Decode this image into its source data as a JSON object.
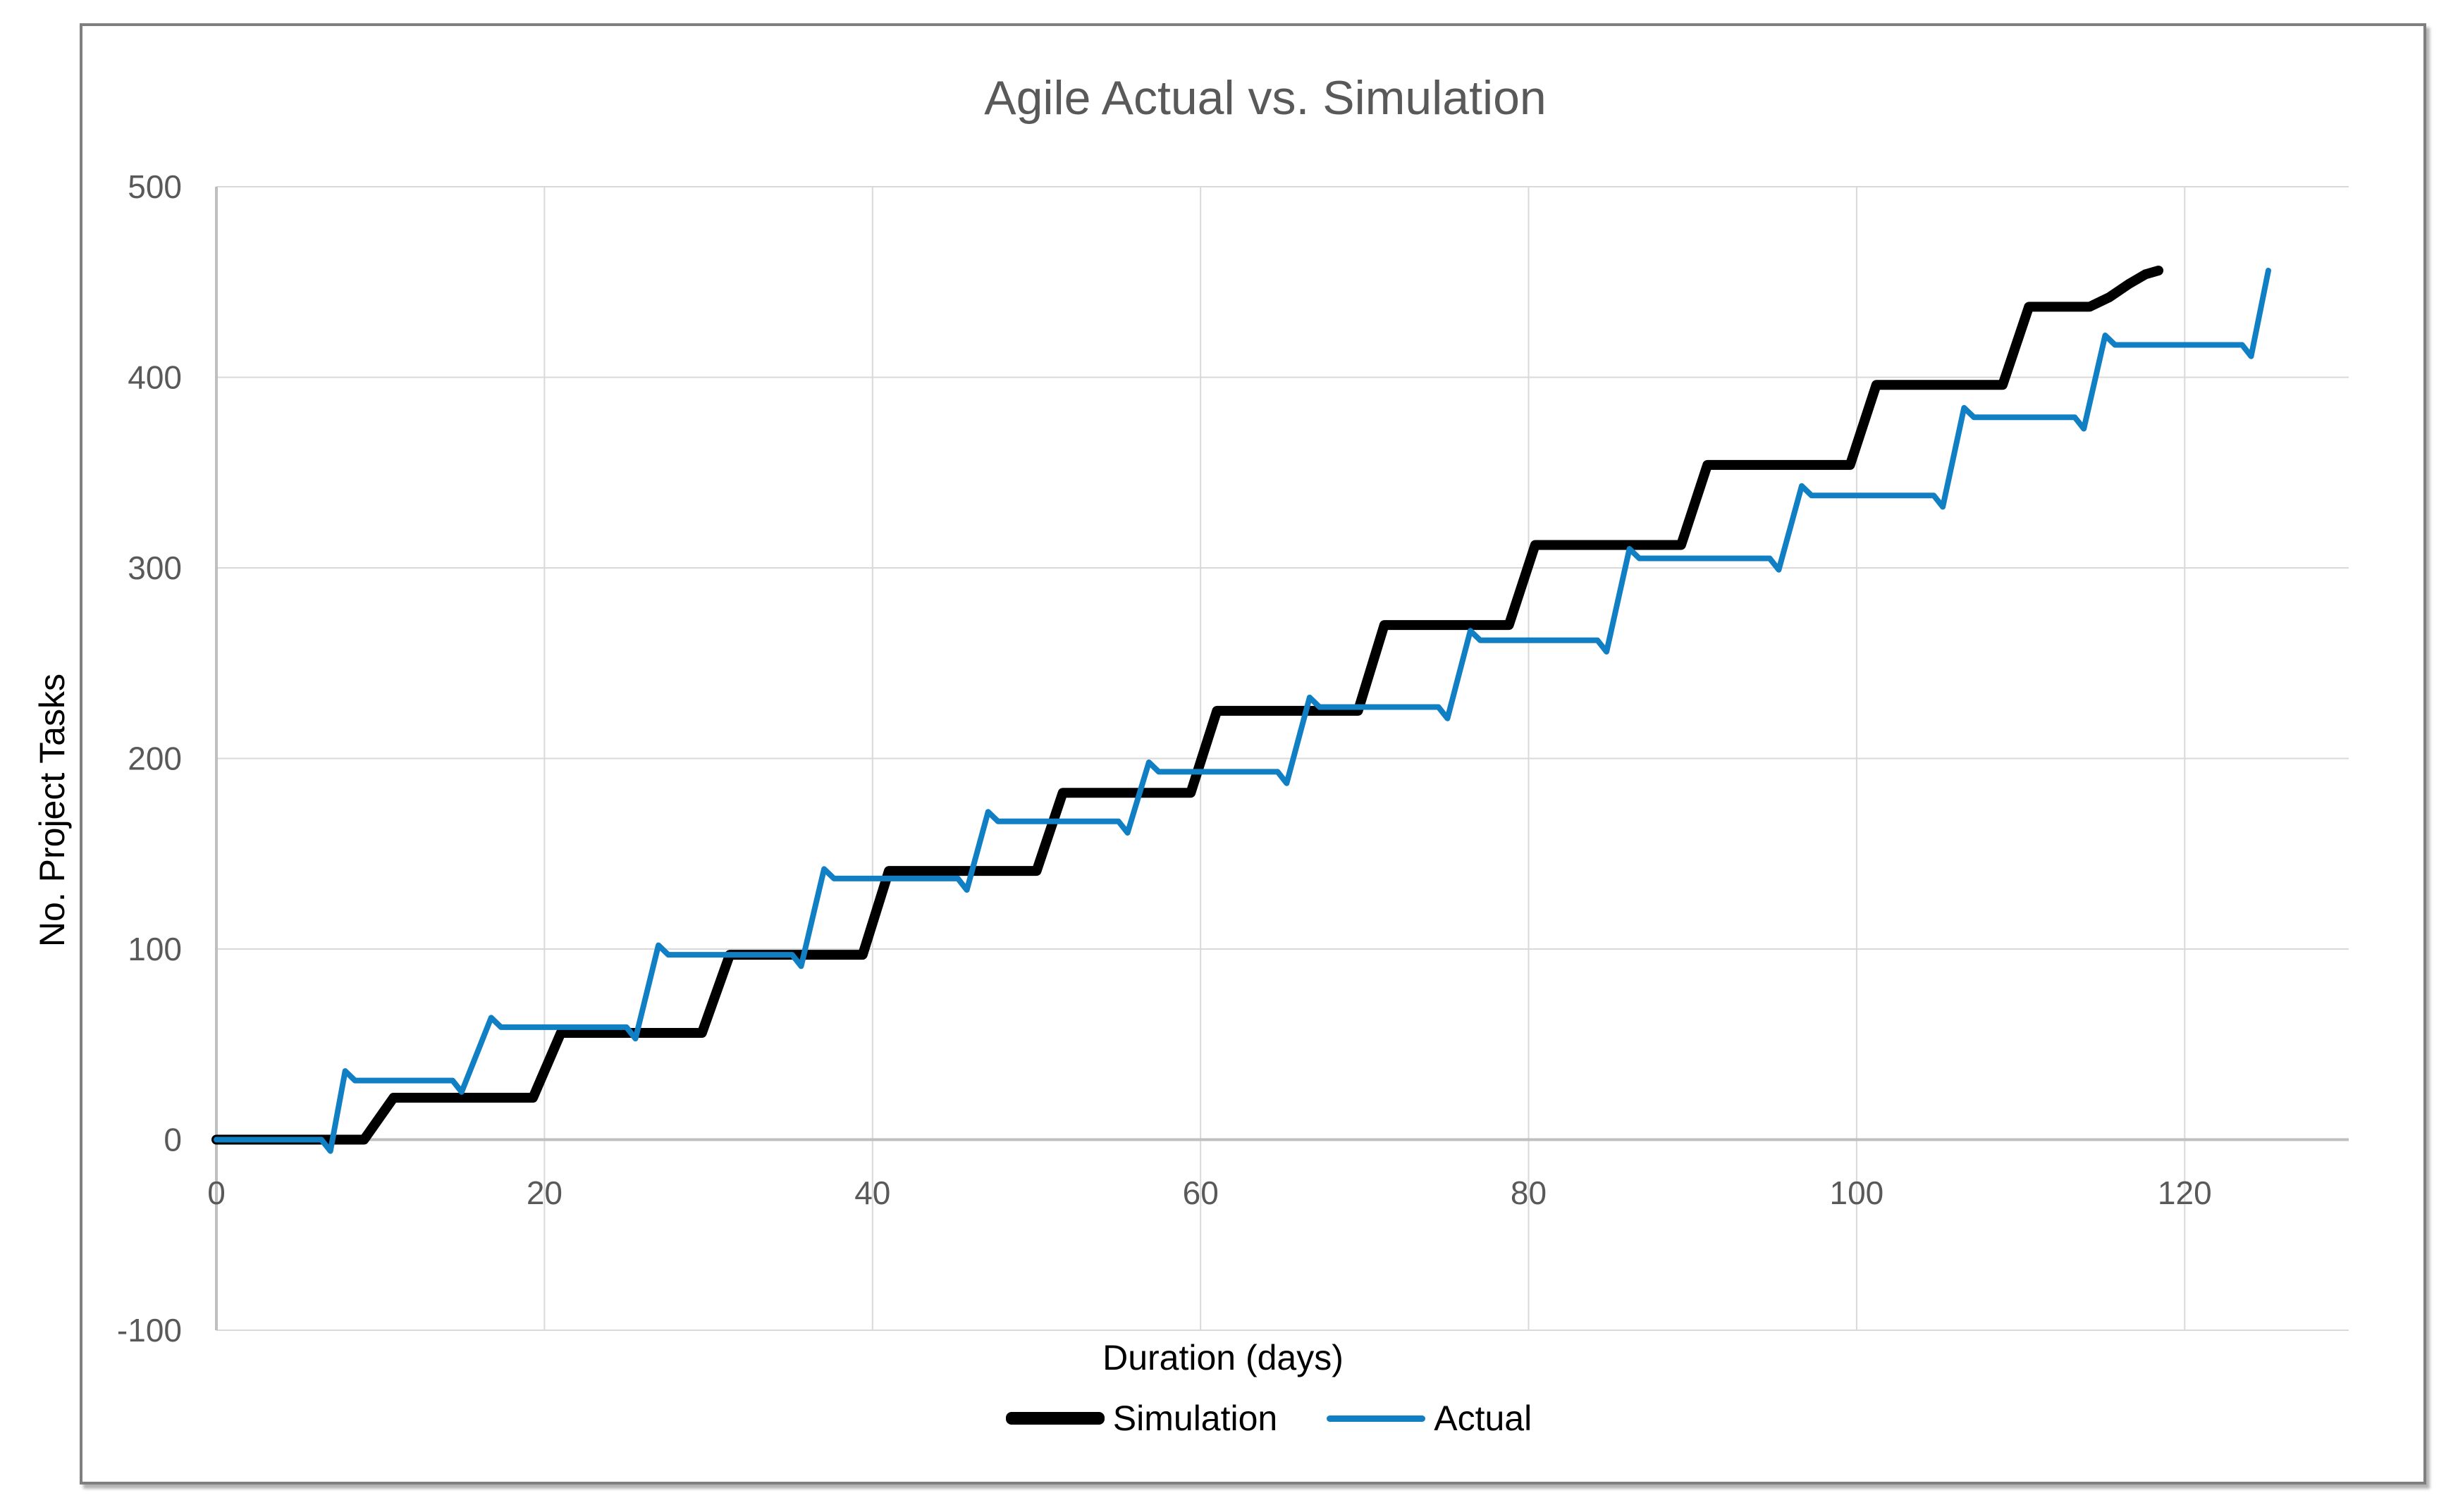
{
  "figure": {
    "title": "Agile Actual vs. Simulation",
    "x_axis_title": "Duration (days)",
    "y_axis_title": "No. Project Tasks"
  },
  "legend": {
    "position": "bottom",
    "items": [
      {
        "label": "Simulation",
        "color": "#000000",
        "thickness": 18
      },
      {
        "label": "Actual",
        "color": "#117fc4",
        "thickness": 9
      }
    ]
  },
  "colors": {
    "title_text": "#595959",
    "tick_label": "#595959",
    "axis_title_text": "#000000",
    "gridline": "#d9d9d9",
    "axis_line": "#bfbfbf",
    "frame_border": "#7f7f7f",
    "simulation_line": "#000000",
    "actual_line": "#117fc4",
    "background": "#ffffff"
  },
  "chart_data": {
    "type": "line",
    "title": "Agile Actual vs. Simulation",
    "xlabel": "Duration (days)",
    "ylabel": "No. Project Tasks",
    "xlim": [
      0,
      130
    ],
    "ylim": [
      -100,
      500
    ],
    "x_ticks": [
      0,
      20,
      40,
      60,
      80,
      100,
      120
    ],
    "y_ticks": [
      -100,
      0,
      100,
      200,
      300,
      400,
      500
    ],
    "grid": true,
    "legend_position": "bottom",
    "series": [
      {
        "name": "Simulation",
        "color": "#000000",
        "stroke_width": 14,
        "style": "step",
        "wiggle": false,
        "points": [
          [
            0,
            0
          ],
          [
            9,
            0
          ],
          [
            10.8,
            22
          ],
          [
            19.3,
            22
          ],
          [
            21,
            56
          ],
          [
            29.6,
            56
          ],
          [
            31.3,
            97
          ],
          [
            39.4,
            97
          ],
          [
            41,
            141
          ],
          [
            50,
            141
          ],
          [
            51.6,
            182
          ],
          [
            59.4,
            182
          ],
          [
            61,
            225
          ],
          [
            69.6,
            225
          ],
          [
            71.2,
            270
          ],
          [
            78.8,
            270
          ],
          [
            80.4,
            312
          ],
          [
            89.3,
            312
          ],
          [
            90.9,
            354
          ],
          [
            99.6,
            354
          ],
          [
            101.2,
            396
          ],
          [
            108.9,
            396
          ],
          [
            110.5,
            437
          ],
          [
            114.2,
            437
          ],
          [
            115.4,
            442
          ],
          [
            116.6,
            449
          ],
          [
            117.6,
            454
          ],
          [
            118.4,
            456
          ]
        ]
      },
      {
        "name": "Actual",
        "color": "#117fc4",
        "stroke_width": 8,
        "style": "step-smoothed",
        "wiggle": true,
        "points": [
          [
            0,
            0
          ],
          [
            6.8,
            0
          ],
          [
            8,
            31
          ],
          [
            14.8,
            31
          ],
          [
            16.9,
            59
          ],
          [
            25.4,
            59
          ],
          [
            27.1,
            97
          ],
          [
            35.5,
            97
          ],
          [
            37.2,
            137
          ],
          [
            45.6,
            137
          ],
          [
            47.2,
            167
          ],
          [
            55.4,
            167
          ],
          [
            57,
            193
          ],
          [
            65.1,
            193
          ],
          [
            66.8,
            227
          ],
          [
            74.9,
            227
          ],
          [
            76.6,
            262
          ],
          [
            84.6,
            262
          ],
          [
            86.3,
            305
          ],
          [
            95.1,
            305
          ],
          [
            96.8,
            338
          ],
          [
            105.1,
            338
          ],
          [
            106.7,
            379
          ],
          [
            113.7,
            379
          ],
          [
            115.3,
            417
          ],
          [
            123.9,
            417
          ],
          [
            125.1,
            456
          ]
        ]
      }
    ]
  }
}
